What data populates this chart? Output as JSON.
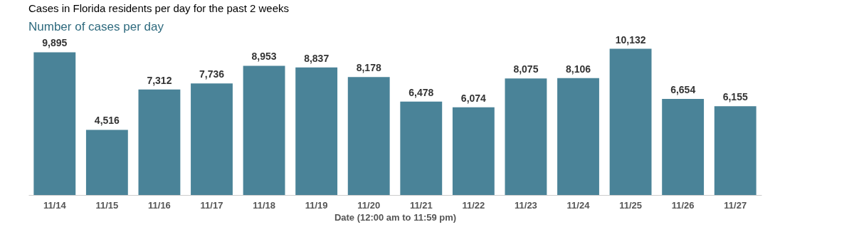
{
  "chart_data": {
    "type": "bar",
    "title": "Cases in Florida residents per day for the past 2 weeks",
    "subtitle": "Number of cases per day",
    "xlabel": "Date (12:00 am to 11:59 pm)",
    "categories": [
      "11/14",
      "11/15",
      "11/16",
      "11/17",
      "11/18",
      "11/19",
      "11/20",
      "11/21",
      "11/22",
      "11/23",
      "11/24",
      "11/25",
      "11/26",
      "11/27"
    ],
    "values": [
      9895,
      4516,
      7312,
      7736,
      8953,
      8837,
      8178,
      6478,
      6074,
      8075,
      8106,
      10132,
      6654,
      6155
    ],
    "value_labels": [
      "9,895",
      "4,516",
      "7,312",
      "7,736",
      "8,953",
      "8,837",
      "8,178",
      "6,478",
      "6,074",
      "8,075",
      "8,106",
      "10,132",
      "6,654",
      "6,155"
    ],
    "color": "#4a8398"
  }
}
